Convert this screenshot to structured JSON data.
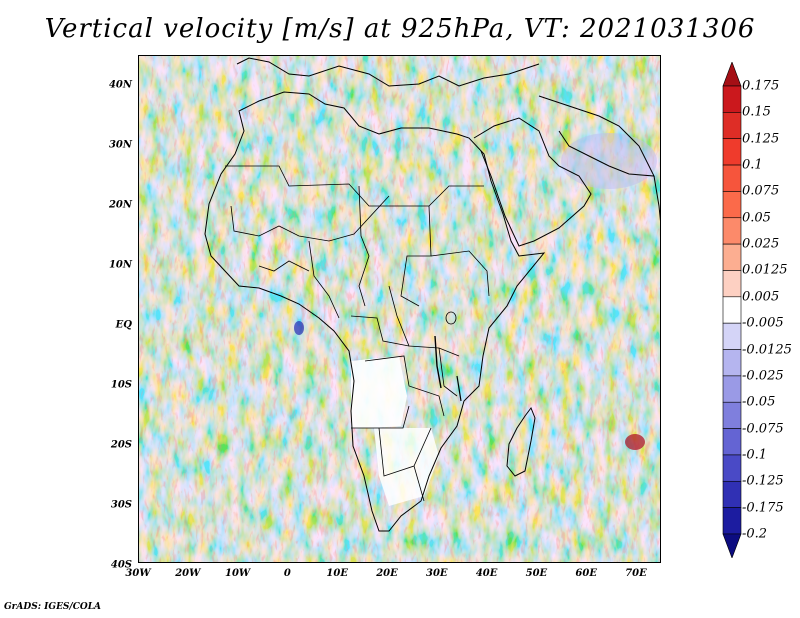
{
  "title": "Vertical velocity [m/s] at 925hPa, VT: 2021031306",
  "credit": "GrADS: IGES/COLA",
  "map": {
    "lon_range": [
      -30,
      75
    ],
    "lat_range": [
      -40,
      45
    ],
    "lat_labels": [
      "40N",
      "30N",
      "20N",
      "10N",
      "EQ",
      "10S",
      "20S",
      "30S",
      "40S"
    ],
    "lon_labels": [
      "30W",
      "20W",
      "10W",
      "0",
      "10E",
      "20E",
      "30E",
      "40E",
      "50E",
      "60E",
      "70E"
    ],
    "region": "Africa"
  },
  "colorbar": {
    "levels": [
      "0.175",
      "0.15",
      "0.125",
      "0.1",
      "0.075",
      "0.05",
      "0.025",
      "0.0125",
      "0.005",
      "-0.005",
      "-0.0125",
      "-0.025",
      "-0.05",
      "-0.075",
      "-0.1",
      "-0.125",
      "-0.175",
      "-0.2"
    ],
    "colors": [
      "#a50f15",
      "#cb181d",
      "#de2d26",
      "#ef3b2c",
      "#f6553c",
      "#fb6a4a",
      "#fc8a6a",
      "#fcae91",
      "#fdd0c2",
      "#ffffff",
      "#d4d4f7",
      "#b5b5ef",
      "#9a9ae6",
      "#7f7fdd",
      "#6464d3",
      "#4a4ac6",
      "#3030b4",
      "#1c1ca0",
      "#0c0c80"
    ]
  }
}
